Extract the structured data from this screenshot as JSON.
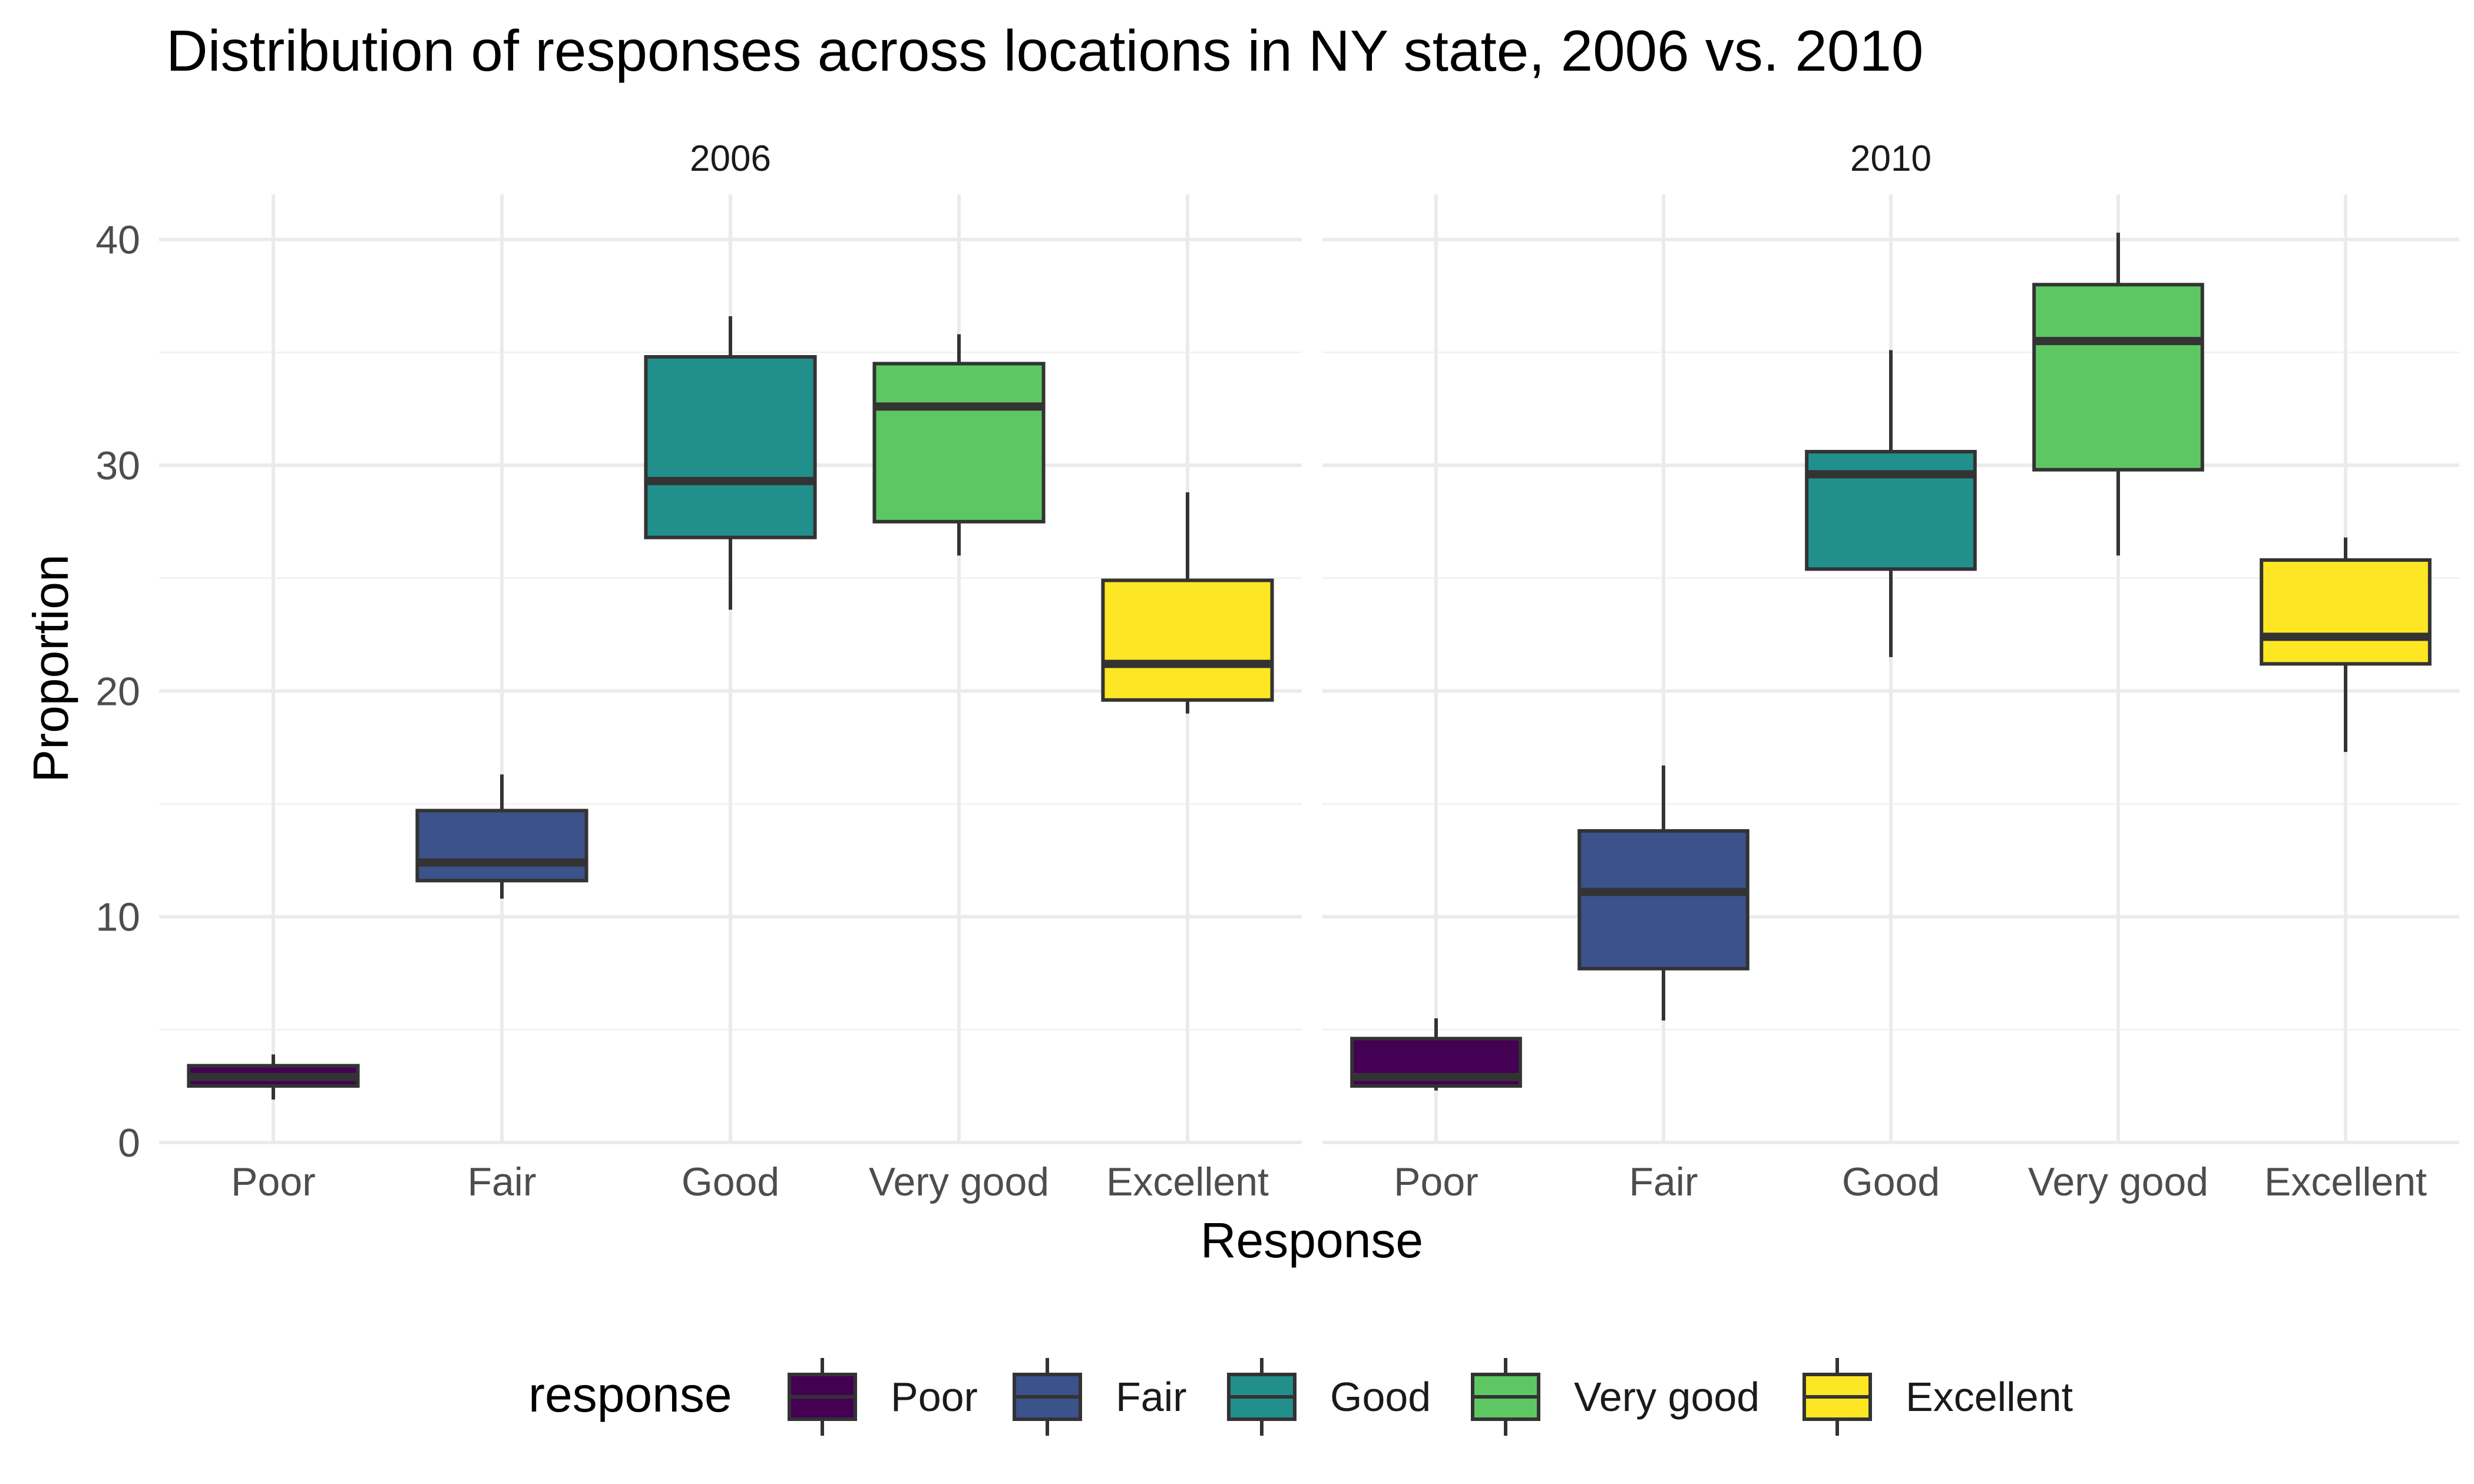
{
  "chart_data": {
    "type": "box",
    "title": "Distribution of responses across locations in NY state, 2006 vs. 2010",
    "xlabel": "Response",
    "ylabel": "Proportion",
    "ylim": [
      0,
      42
    ],
    "yticks": [
      "0",
      "10",
      "20",
      "30",
      "40"
    ],
    "ytick_values": [
      0,
      10,
      20,
      30,
      40
    ],
    "grid": true,
    "legend": {
      "title": "response",
      "position": "bottom"
    },
    "categories": [
      "Poor",
      "Fair",
      "Good",
      "Very good",
      "Excellent"
    ],
    "colors": {
      "Poor": "#440154",
      "Fair": "#3B528B",
      "Good": "#21908C",
      "Very good": "#5DC863",
      "Excellent": "#FDE725"
    },
    "panels": [
      {
        "label": "2006",
        "boxes": [
          {
            "category": "Poor",
            "min": 1.9,
            "q1": 2.5,
            "median": 2.9,
            "q3": 3.4,
            "max": 3.9
          },
          {
            "category": "Fair",
            "min": 10.8,
            "q1": 11.6,
            "median": 12.4,
            "q3": 14.7,
            "max": 16.3
          },
          {
            "category": "Good",
            "min": 23.6,
            "q1": 26.8,
            "median": 29.3,
            "q3": 34.8,
            "max": 36.6
          },
          {
            "category": "Very good",
            "min": 26.0,
            "q1": 27.5,
            "median": 32.6,
            "q3": 34.5,
            "max": 35.8
          },
          {
            "category": "Excellent",
            "min": 19.0,
            "q1": 19.6,
            "median": 21.2,
            "q3": 24.9,
            "max": 28.8
          }
        ]
      },
      {
        "label": "2010",
        "boxes": [
          {
            "category": "Poor",
            "min": 2.3,
            "q1": 2.5,
            "median": 2.9,
            "q3": 4.6,
            "max": 5.5
          },
          {
            "category": "Fair",
            "min": 5.4,
            "q1": 7.7,
            "median": 11.1,
            "q3": 13.8,
            "max": 16.7
          },
          {
            "category": "Good",
            "min": 21.5,
            "q1": 25.4,
            "median": 29.6,
            "q3": 30.6,
            "max": 35.1
          },
          {
            "category": "Very good",
            "min": 26.0,
            "q1": 29.8,
            "median": 35.5,
            "q3": 38.0,
            "max": 40.3
          },
          {
            "category": "Excellent",
            "min": 17.3,
            "q1": 21.2,
            "median": 22.4,
            "q3": 25.8,
            "max": 26.8
          }
        ]
      }
    ]
  }
}
